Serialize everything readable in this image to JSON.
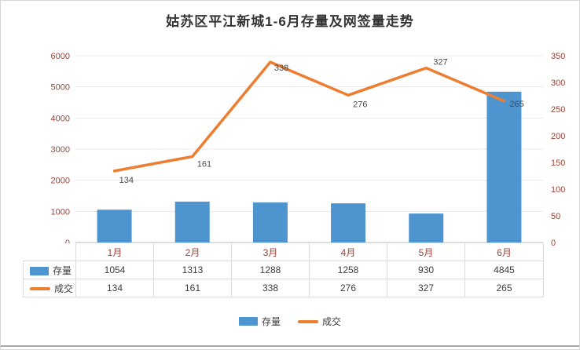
{
  "title": "姑苏区平江新城1-6月存量及网签量走势",
  "chart_data": {
    "type": "bar",
    "subtype": "combo-bar-line-dual-axis",
    "title": "姑苏区平江新城1-6月存量及网签量走势",
    "categories": [
      "1月",
      "2月",
      "3月",
      "4月",
      "5月",
      "6月"
    ],
    "series": [
      {
        "name": "存量",
        "type": "bar",
        "axis": "left",
        "color": "#4e95cf",
        "values": [
          1054,
          1313,
          1288,
          1258,
          930,
          4845
        ]
      },
      {
        "name": "成交",
        "type": "line",
        "axis": "right",
        "color": "#ED7D31",
        "values": [
          134,
          161,
          338,
          276,
          327,
          265
        ]
      }
    ],
    "left_axis": {
      "min": 0,
      "max": 6000,
      "step": 1000,
      "ticks": [
        0,
        1000,
        2000,
        3000,
        4000,
        5000,
        6000
      ]
    },
    "right_axis": {
      "min": 0,
      "max": 350,
      "step": 50,
      "ticks": [
        0,
        50,
        100,
        150,
        200,
        250,
        300,
        350
      ]
    },
    "grid": true,
    "legend_position": "bottom",
    "data_labels_series": "成交"
  },
  "colors": {
    "axis_label": "#9b4438",
    "grid_line": "#e8e8e8",
    "baseline": "#c0c0c0",
    "data_label": "#4a4a4a",
    "table_border": "#dcdcdc",
    "table_text": "#3c3c3c"
  },
  "legend": {
    "items": [
      {
        "label": "存量"
      },
      {
        "label": "成交"
      }
    ]
  }
}
